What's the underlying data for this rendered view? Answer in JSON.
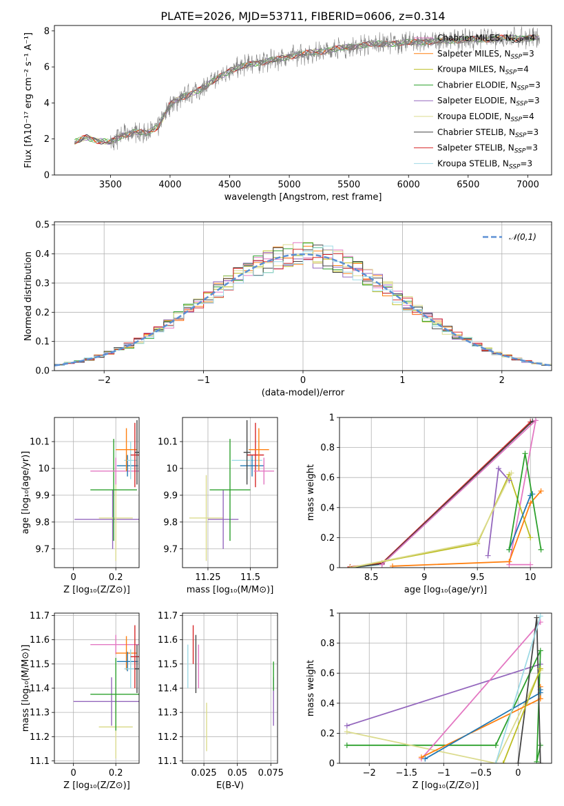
{
  "figure_title": "PLATE=2026, MJD=53711, FIBERID=0606, z=0.314",
  "colors": [
    "#e377c2",
    "#ff7f0e",
    "#bcbd22",
    "#2ca02c",
    "#9467bd",
    "#dbdb8d",
    "#444444",
    "#d62728",
    "#9edae5"
  ],
  "chart_data": [
    {
      "id": "spectrum",
      "type": "line",
      "title": "PLATE=2026, MJD=53711, FIBERID=0606, z=0.314",
      "xlabel": "wavelength [Angstrom, rest frame]",
      "ylabel": "Flux [fλ10⁻¹⁷ erg cm⁻² s⁻¹ A⁻¹]",
      "xlim": [
        3030,
        7200
      ],
      "ylim": [
        0,
        8.3
      ],
      "xticks": [
        3500,
        4000,
        4500,
        5000,
        5500,
        6000,
        6500,
        7000
      ],
      "yticks": [
        0,
        2,
        4,
        6,
        8
      ],
      "grid": false,
      "legend_position": "top-right",
      "legend": [
        {
          "label": "Chabrier MILES, N",
          "sub": "SSP",
          "suffix": "=4",
          "color": "#e377c2"
        },
        {
          "label": "Salpeter MILES, N",
          "sub": "SSP",
          "suffix": "=3",
          "color": "#ff7f0e"
        },
        {
          "label": "Kroupa MILES, N",
          "sub": "SSP",
          "suffix": "=4",
          "color": "#bcbd22"
        },
        {
          "label": "Chabrier ELODIE, N",
          "sub": "SSP",
          "suffix": "=3",
          "color": "#2ca02c"
        },
        {
          "label": "Salpeter ELODIE, N",
          "sub": "SSP",
          "suffix": "=3",
          "color": "#9467bd"
        },
        {
          "label": "Kroupa ELODIE, N",
          "sub": "SSP",
          "suffix": "=4",
          "color": "#dbdb8d"
        },
        {
          "label": "Chabrier STELIB, N",
          "sub": "SSP",
          "suffix": "=3",
          "color": "#444444"
        },
        {
          "label": "Salpeter STELIB, N",
          "sub": "SSP",
          "suffix": "=3",
          "color": "#d62728"
        },
        {
          "label": "Kroupa STELIB, N",
          "sub": "SSP",
          "suffix": "=3",
          "color": "#9edae5"
        }
      ],
      "continuum": {
        "x": [
          3200,
          3300,
          3400,
          3500,
          3600,
          3700,
          3800,
          3900,
          4000,
          4100,
          4200,
          4300,
          4400,
          4500,
          4600,
          4700,
          4800,
          4900,
          5000,
          5100,
          5200,
          5300,
          5400,
          5500,
          5600,
          5700,
          5800,
          5900,
          6000,
          6100,
          6200,
          6300,
          6400,
          6500,
          6600,
          6700,
          6800,
          6900,
          7000,
          7100
        ],
        "y": [
          1.8,
          2.1,
          1.9,
          1.8,
          2.2,
          2.4,
          2.3,
          2.7,
          3.9,
          4.3,
          4.6,
          4.9,
          5.4,
          5.8,
          6.0,
          6.2,
          6.3,
          6.4,
          6.6,
          6.7,
          6.8,
          6.9,
          7.0,
          7.1,
          7.2,
          7.25,
          7.3,
          7.3,
          7.35,
          7.4,
          7.4,
          7.45,
          7.5,
          7.5,
          7.55,
          7.55,
          7.6,
          7.6,
          7.6,
          7.6
        ]
      }
    },
    {
      "id": "residuals",
      "type": "histogram",
      "xlabel": "(data-model)/error",
      "ylabel": "Normed distribution",
      "xlim": [
        -2.5,
        2.5
      ],
      "ylim": [
        0,
        0.51
      ],
      "xticks": [
        -2,
        -1,
        0,
        1,
        2
      ],
      "yticks": [
        0.0,
        0.1,
        0.2,
        0.3,
        0.4,
        0.5
      ],
      "grid": true,
      "legend_position": "top-right",
      "legend": [
        {
          "label": "𝒩(0,1)",
          "color": "#5b8fd4",
          "style": "dashed"
        }
      ],
      "bin_width": 0.1
    },
    {
      "id": "age-vs-Z",
      "type": "scatter-errorbar",
      "xlabel": "Z [log₁₀(Z/Z⊙)]",
      "ylabel": "age  [log₁₀(age/yr)]",
      "xlim": [
        -0.09,
        0.31
      ],
      "ylim": [
        9.63,
        10.19
      ],
      "xticks": [
        0.0,
        0.2
      ],
      "yticks": [
        9.7,
        9.8,
        9.9,
        10.0,
        10.1
      ],
      "grid": true,
      "points": [
        {
          "x": 0.185,
          "y": 9.81,
          "dx": 0.18,
          "dy": 0.11,
          "color": "#9467bd"
        },
        {
          "x": 0.2,
          "y": 9.815,
          "dx": 0.08,
          "dy": 0.16,
          "color": "#dbdb8d"
        },
        {
          "x": 0.19,
          "y": 9.92,
          "dx": 0.11,
          "dy": 0.19,
          "color": "#2ca02c"
        },
        {
          "x": 0.2,
          "y": 9.99,
          "dx": 0.12,
          "dy": 0.05,
          "color": "#e377c2"
        },
        {
          "x": 0.255,
          "y": 10.01,
          "dx": 0.05,
          "dy": 0.04,
          "color": "#1f77b4"
        },
        {
          "x": 0.27,
          "y": 10.03,
          "dx": 0.03,
          "dy": 0.07,
          "color": "#9edae5"
        },
        {
          "x": 0.25,
          "y": 10.07,
          "dx": 0.05,
          "dy": 0.08,
          "color": "#ff7f0e"
        },
        {
          "x": 0.29,
          "y": 10.05,
          "dx": 0.02,
          "dy": 0.12,
          "color": "#d62728"
        },
        {
          "x": 0.3,
          "y": 10.06,
          "dx": 0.01,
          "dy": 0.12,
          "color": "#444444"
        }
      ]
    },
    {
      "id": "age-vs-mass",
      "type": "scatter-errorbar",
      "xlabel": "mass [log₁₀(M/M⊙)]",
      "ylabel": "",
      "xlim": [
        11.1,
        11.66
      ],
      "ylim": [
        9.63,
        10.19
      ],
      "xticks": [
        11.25,
        11.5
      ],
      "yticks": [
        9.7,
        9.8,
        9.9,
        10.0,
        10.1
      ],
      "grid": true,
      "points": [
        {
          "x": 11.24,
          "y": 9.815,
          "dx": 0.1,
          "dy": 0.16,
          "color": "#dbdb8d"
        },
        {
          "x": 11.34,
          "y": 9.81,
          "dx": 0.09,
          "dy": 0.11,
          "color": "#9467bd"
        },
        {
          "x": 11.38,
          "y": 9.92,
          "dx": 0.12,
          "dy": 0.19,
          "color": "#2ca02c"
        },
        {
          "x": 11.48,
          "y": 10.03,
          "dx": 0.09,
          "dy": 0.07,
          "color": "#9edae5"
        },
        {
          "x": 11.51,
          "y": 10.01,
          "dx": 0.07,
          "dy": 0.04,
          "color": "#1f77b4"
        },
        {
          "x": 11.53,
          "y": 10.05,
          "dx": 0.05,
          "dy": 0.12,
          "color": "#d62728"
        },
        {
          "x": 11.55,
          "y": 10.07,
          "dx": 0.06,
          "dy": 0.08,
          "color": "#ff7f0e"
        },
        {
          "x": 11.58,
          "y": 9.99,
          "dx": 0.06,
          "dy": 0.05,
          "color": "#e377c2"
        },
        {
          "x": 11.48,
          "y": 10.06,
          "dx": 0.02,
          "dy": 0.12,
          "color": "#444444"
        }
      ]
    },
    {
      "id": "massweight-vs-age",
      "type": "line",
      "xlabel": "age  [log₁₀(age/yr)]",
      "ylabel": "mass weight",
      "xlim": [
        8.2,
        10.2
      ],
      "ylim": [
        0,
        1
      ],
      "xticks": [
        8.5,
        9.0,
        9.5,
        10.0
      ],
      "yticks": [
        0.0,
        0.2,
        0.4,
        0.6,
        0.8,
        1.0
      ],
      "grid": true,
      "series": [
        {
          "color": "#9edae5",
          "x": [
            8.3,
            8.6,
            10.05
          ],
          "y": [
            0.0,
            0.02,
            0.98
          ]
        },
        {
          "color": "#d62728",
          "x": [
            8.3,
            8.6,
            10.0
          ],
          "y": [
            0.005,
            0.03,
            0.97
          ]
        },
        {
          "color": "#444444",
          "x": [
            8.3,
            8.6,
            10.02
          ],
          "y": [
            0.0,
            0.025,
            0.975
          ]
        },
        {
          "color": "#e377c2",
          "x": [
            8.6,
            10.05,
            9.8,
            10.0
          ],
          "y": [
            0.02,
            0.98,
            0.02,
            0.02
          ]
        },
        {
          "color": "#bcbd22",
          "x": [
            8.3,
            9.5,
            9.8,
            10.0
          ],
          "y": [
            0.0,
            0.16,
            0.62,
            0.2
          ]
        },
        {
          "color": "#ff7f0e",
          "x": [
            8.7,
            9.8,
            10.0,
            10.1
          ],
          "y": [
            0.01,
            0.04,
            0.43,
            0.51
          ]
        },
        {
          "color": "#1f77b4",
          "x": [
            9.8,
            10.0,
            10.02
          ],
          "y": [
            0.12,
            0.48,
            0.49
          ]
        },
        {
          "color": "#9467bd",
          "x": [
            9.6,
            9.7,
            9.8
          ],
          "y": [
            0.08,
            0.66,
            0.58
          ]
        },
        {
          "color": "#2ca02c",
          "x": [
            9.8,
            9.95,
            10.1
          ],
          "y": [
            0.12,
            0.76,
            0.12
          ]
        },
        {
          "color": "#dbdb8d",
          "x": [
            8.3,
            9.5,
            9.82
          ],
          "y": [
            0.0,
            0.17,
            0.63
          ]
        }
      ]
    },
    {
      "id": "mass-vs-Z",
      "type": "scatter-errorbar",
      "xlabel": "Z [log₁₀(Z/Z⊙)]",
      "ylabel": "mass [log₁₀(M/M⊙)]",
      "xlim": [
        -0.09,
        0.31
      ],
      "ylim": [
        11.09,
        11.71
      ],
      "xticks": [
        0.0,
        0.2
      ],
      "yticks": [
        11.1,
        11.2,
        11.3,
        11.4,
        11.5,
        11.6,
        11.7
      ],
      "grid": true,
      "points": [
        {
          "x": 0.2,
          "y": 11.24,
          "dx": 0.08,
          "dy": 0.13,
          "color": "#dbdb8d"
        },
        {
          "x": 0.18,
          "y": 11.345,
          "dx": 0.18,
          "dy": 0.1,
          "color": "#9467bd"
        },
        {
          "x": 0.2,
          "y": 11.375,
          "dx": 0.12,
          "dy": 0.15,
          "color": "#2ca02c"
        },
        {
          "x": 0.2,
          "y": 11.58,
          "dx": 0.12,
          "dy": 0.04,
          "color": "#e377c2"
        },
        {
          "x": 0.25,
          "y": 11.545,
          "dx": 0.05,
          "dy": 0.07,
          "color": "#ff7f0e"
        },
        {
          "x": 0.255,
          "y": 11.51,
          "dx": 0.05,
          "dy": 0.04,
          "color": "#1f77b4"
        },
        {
          "x": 0.27,
          "y": 11.48,
          "dx": 0.03,
          "dy": 0.08,
          "color": "#9edae5"
        },
        {
          "x": 0.29,
          "y": 11.53,
          "dx": 0.02,
          "dy": 0.13,
          "color": "#d62728"
        },
        {
          "x": 0.3,
          "y": 11.48,
          "dx": 0.01,
          "dy": 0.1,
          "color": "#444444"
        }
      ]
    },
    {
      "id": "mass-vs-EBV",
      "type": "scatter-errorbar",
      "xlabel": "E(B-V)",
      "ylabel": "",
      "xlim": [
        0.009,
        0.08
      ],
      "ylim": [
        11.09,
        11.71
      ],
      "xticks": [
        0.025,
        0.05,
        0.075
      ],
      "yticks": [
        11.1,
        11.2,
        11.3,
        11.4,
        11.5,
        11.6,
        11.7
      ],
      "grid": true,
      "points": [
        {
          "x": 0.013,
          "y": 11.49,
          "dx": 0,
          "dy": 0.09,
          "color": "#9edae5"
        },
        {
          "x": 0.017,
          "y": 11.58,
          "dx": 0,
          "dy": 0.08,
          "color": "#d62728"
        },
        {
          "x": 0.019,
          "y": 11.5,
          "dx": 0,
          "dy": 0.12,
          "color": "#444444"
        },
        {
          "x": 0.021,
          "y": 11.49,
          "dx": 0,
          "dy": 0.09,
          "color": "#e377c2"
        },
        {
          "x": 0.027,
          "y": 11.24,
          "dx": 0,
          "dy": 0.1,
          "color": "#dbdb8d"
        },
        {
          "x": 0.077,
          "y": 11.345,
          "dx": 0,
          "dy": 0.1,
          "color": "#9467bd"
        },
        {
          "x": 0.077,
          "y": 11.45,
          "dx": 0,
          "dy": 0.06,
          "color": "#2ca02c"
        }
      ]
    },
    {
      "id": "massweight-vs-Z",
      "type": "line",
      "xlabel": "Z [log₁₀(Z/Z⊙)]",
      "ylabel": "mass weight",
      "xlim": [
        -2.4,
        0.45
      ],
      "ylim": [
        0,
        1
      ],
      "xticks": [
        -2.0,
        -1.5,
        -1.0,
        -0.5,
        0.0
      ],
      "yticks": [
        0.0,
        0.2,
        0.4,
        0.6,
        0.8,
        1.0
      ],
      "grid": true,
      "series": [
        {
          "color": "#9467bd",
          "x": [
            -2.3,
            0.3
          ],
          "y": [
            0.25,
            0.66
          ]
        },
        {
          "color": "#2ca02c",
          "x": [
            -2.3,
            -0.3,
            0.3,
            0.25,
            0.3
          ],
          "y": [
            0.12,
            0.12,
            0.75,
            0.01,
            0.12
          ]
        },
        {
          "color": "#dbdb8d",
          "x": [
            -2.3,
            -0.3,
            0.3
          ],
          "y": [
            0.21,
            0.0,
            0.62
          ]
        },
        {
          "color": "#e377c2",
          "x": [
            -1.3,
            0.3
          ],
          "y": [
            0.03,
            0.94
          ]
        },
        {
          "color": "#ff7f0e",
          "x": [
            -1.3,
            0.3,
            0.3
          ],
          "y": [
            0.04,
            0.43,
            0.51
          ]
        },
        {
          "color": "#1f77b4",
          "x": [
            -1.25,
            0.3,
            0.3
          ],
          "y": [
            0.03,
            0.47,
            0.49
          ]
        },
        {
          "color": "#444444",
          "x": [
            0.0,
            0.25,
            0.3
          ],
          "y": [
            0.0,
            0.97,
            0.0
          ]
        },
        {
          "color": "#9edae5",
          "x": [
            -0.3,
            0.3
          ],
          "y": [
            0.0,
            0.98
          ]
        },
        {
          "color": "#bcbd22",
          "x": [
            -0.2,
            0.3
          ],
          "y": [
            0.0,
            0.63
          ]
        }
      ]
    }
  ]
}
